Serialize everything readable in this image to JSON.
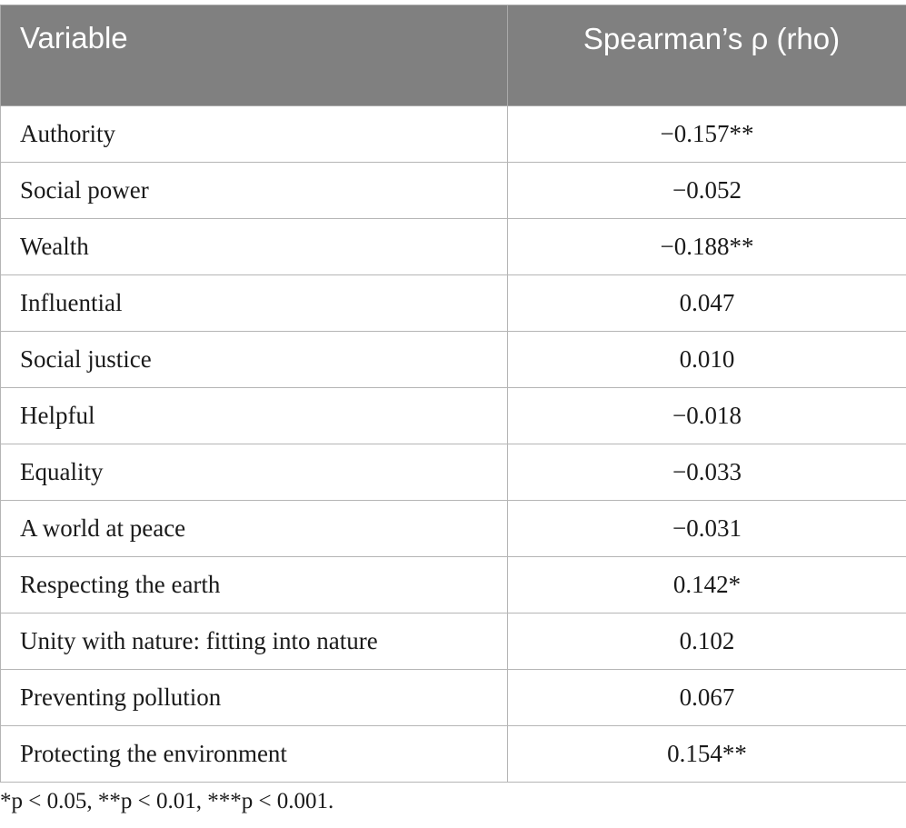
{
  "table": {
    "headers": {
      "variable": "Variable",
      "rho": "Spearman’s ρ (rho)"
    },
    "rows": [
      {
        "variable": "Authority",
        "rho": "−0.157**"
      },
      {
        "variable": "Social power",
        "rho": "−0.052"
      },
      {
        "variable": "Wealth",
        "rho": "−0.188**"
      },
      {
        "variable": "Influential",
        "rho": "0.047"
      },
      {
        "variable": "Social justice",
        "rho": "0.010"
      },
      {
        "variable": "Helpful",
        "rho": "−0.018"
      },
      {
        "variable": "Equality",
        "rho": "−0.033"
      },
      {
        "variable": "A world at peace",
        "rho": "−0.031"
      },
      {
        "variable": "Respecting the earth",
        "rho": "0.142*"
      },
      {
        "variable": "Unity with nature: fitting into nature",
        "rho": "0.102"
      },
      {
        "variable": "Preventing pollution",
        "rho": "0.067"
      },
      {
        "variable": "Protecting the environment",
        "rho": "0.154**"
      }
    ]
  },
  "footnote": "*p < 0.05, **p < 0.01, ***p < 0.001."
}
